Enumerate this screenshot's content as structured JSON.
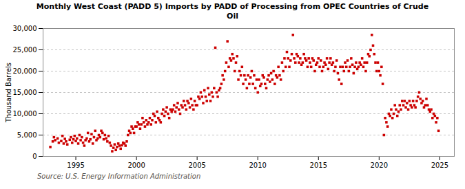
{
  "chart_data": {
    "type": "scatter",
    "title": "Monthly West Coast (PADD 5) Imports by PADD of Processing from OPEC Countries of Crude\nOil",
    "ylabel": "Thousand Barrels",
    "source": "Source: U.S. Energy Information Administration",
    "color": "#cc0000",
    "marker": "square",
    "grid": "y",
    "xlim": [
      1992.3,
      2026.2
    ],
    "xticks": [
      1995,
      2000,
      2005,
      2010,
      2015,
      2020,
      2025
    ],
    "ylim": [
      0,
      30000
    ],
    "yticks": [
      0,
      {
        "value": 5000,
        "label": "5,000"
      },
      {
        "value": 10000,
        "label": "10,000"
      },
      {
        "value": 15000,
        "label": "15,000"
      },
      {
        "value": 20000,
        "label": "20,000"
      },
      {
        "value": 25000,
        "label": "25,000"
      },
      {
        "value": 30000,
        "label": "30,000"
      }
    ],
    "x": [
      1992.9,
      1993.1,
      1993.2,
      1993.3,
      1993.5,
      1993.6,
      1993.8,
      1993.9,
      1994.0,
      1994.1,
      1994.2,
      1994.3,
      1994.5,
      1994.6,
      1994.7,
      1994.8,
      1994.9,
      1995.0,
      1995.1,
      1995.2,
      1995.3,
      1995.4,
      1995.5,
      1995.6,
      1995.7,
      1995.8,
      1995.9,
      1996.0,
      1996.1,
      1996.2,
      1996.3,
      1996.4,
      1996.5,
      1996.6,
      1996.7,
      1996.8,
      1996.9,
      1997.0,
      1997.1,
      1997.2,
      1997.3,
      1997.4,
      1997.5,
      1997.6,
      1997.7,
      1997.8,
      1997.9,
      1998.0,
      1998.1,
      1998.2,
      1998.3,
      1998.4,
      1998.5,
      1998.6,
      1998.7,
      1998.8,
      1998.9,
      1999.0,
      1999.1,
      1999.2,
      1999.3,
      1999.4,
      1999.5,
      1999.6,
      1999.7,
      1999.8,
      1999.9,
      2000.0,
      2000.1,
      2000.2,
      2000.3,
      2000.4,
      2000.5,
      2000.6,
      2000.7,
      2000.8,
      2000.9,
      2001.0,
      2001.1,
      2001.2,
      2001.3,
      2001.4,
      2001.5,
      2001.6,
      2001.7,
      2001.8,
      2001.9,
      2002.0,
      2002.1,
      2002.2,
      2002.3,
      2002.4,
      2002.5,
      2002.6,
      2002.7,
      2002.8,
      2002.9,
      2003.0,
      2003.1,
      2003.2,
      2003.3,
      2003.4,
      2003.5,
      2003.6,
      2003.7,
      2003.8,
      2003.9,
      2004.0,
      2004.1,
      2004.2,
      2004.3,
      2004.4,
      2004.5,
      2004.6,
      2004.7,
      2004.8,
      2004.9,
      2005.0,
      2005.1,
      2005.2,
      2005.3,
      2005.4,
      2005.5,
      2005.6,
      2005.7,
      2005.8,
      2005.9,
      2006.0,
      2006.1,
      2006.2,
      2006.3,
      2006.4,
      2006.5,
      2006.6,
      2006.7,
      2006.8,
      2006.9,
      2007.0,
      2007.1,
      2007.2,
      2007.3,
      2007.4,
      2007.5,
      2007.6,
      2007.7,
      2007.8,
      2007.9,
      2008.0,
      2008.1,
      2008.2,
      2008.3,
      2008.4,
      2008.5,
      2008.6,
      2008.7,
      2008.8,
      2008.9,
      2009.0,
      2009.1,
      2009.2,
      2009.3,
      2009.4,
      2009.5,
      2009.6,
      2009.7,
      2009.8,
      2009.9,
      2010.0,
      2010.1,
      2010.2,
      2010.3,
      2010.4,
      2010.5,
      2010.6,
      2010.7,
      2010.8,
      2010.9,
      2011.0,
      2011.1,
      2011.2,
      2011.3,
      2011.4,
      2011.5,
      2011.6,
      2011.7,
      2011.8,
      2011.9,
      2012.0,
      2012.1,
      2012.2,
      2012.3,
      2012.4,
      2012.5,
      2012.6,
      2012.7,
      2012.8,
      2012.9,
      2013.0,
      2013.1,
      2013.2,
      2013.3,
      2013.4,
      2013.5,
      2013.6,
      2013.7,
      2013.8,
      2013.9,
      2014.0,
      2014.1,
      2014.2,
      2014.3,
      2014.4,
      2014.5,
      2014.6,
      2014.7,
      2014.8,
      2014.9,
      2015.0,
      2015.1,
      2015.2,
      2015.3,
      2015.4,
      2015.5,
      2015.6,
      2015.7,
      2015.8,
      2015.9,
      2016.0,
      2016.1,
      2016.2,
      2016.3,
      2016.4,
      2016.5,
      2016.6,
      2016.7,
      2016.8,
      2016.9,
      2017.0,
      2017.1,
      2017.2,
      2017.3,
      2017.4,
      2017.5,
      2017.6,
      2017.7,
      2017.8,
      2017.9,
      2018.0,
      2018.1,
      2018.2,
      2018.3,
      2018.4,
      2018.5,
      2018.6,
      2018.7,
      2018.8,
      2018.9,
      2019.0,
      2019.1,
      2019.2,
      2019.3,
      2019.4,
      2019.5,
      2019.6,
      2019.7,
      2019.8,
      2019.9,
      2020.0,
      2020.1,
      2020.2,
      2020.3,
      2020.4,
      2020.5,
      2020.6,
      2020.7,
      2020.8,
      2020.9,
      2021.0,
      2021.1,
      2021.2,
      2021.3,
      2021.4,
      2021.5,
      2021.6,
      2021.7,
      2021.8,
      2021.9,
      2022.0,
      2022.1,
      2022.2,
      2022.3,
      2022.4,
      2022.5,
      2022.6,
      2022.7,
      2022.8,
      2022.9,
      2023.0,
      2023.1,
      2023.2,
      2023.3,
      2023.4,
      2023.5,
      2023.6,
      2023.7,
      2023.8,
      2023.9,
      2024.0,
      2024.1,
      2024.2,
      2024.3,
      2024.4,
      2024.5,
      2024.6,
      2024.7,
      2024.8,
      2024.9
    ],
    "values": [
      2200,
      3500,
      4500,
      3800,
      4200,
      3200,
      3600,
      4800,
      3000,
      4100,
      3500,
      2800,
      3900,
      4500,
      3200,
      4000,
      4800,
      3600,
      4200,
      3000,
      5000,
      3800,
      4500,
      3200,
      2500,
      3800,
      4200,
      5500,
      3500,
      4000,
      5200,
      3000,
      4500,
      6000,
      3800,
      4200,
      5000,
      4500,
      6000,
      5500,
      4000,
      5000,
      4200,
      3500,
      4800,
      3200,
      2500,
      1200,
      2000,
      2800,
      1500,
      2200,
      3000,
      2500,
      1800,
      2600,
      3200,
      3000,
      2500,
      3500,
      5000,
      6000,
      5500,
      7000,
      6500,
      5500,
      7000,
      7000,
      8000,
      7500,
      6500,
      7500,
      9000,
      8000,
      7000,
      8500,
      7500,
      8000,
      9000,
      7500,
      8500,
      10000,
      9500,
      8000,
      10500,
      9000,
      8500,
      8000,
      10000,
      11000,
      9500,
      10500,
      11500,
      10000,
      9000,
      11000,
      10500,
      11000,
      12000,
      10500,
      11500,
      12500,
      11000,
      10000,
      12000,
      11500,
      13000,
      12000,
      11000,
      13000,
      12500,
      11500,
      13500,
      12000,
      11000,
      13000,
      12000,
      12000,
      14000,
      13500,
      15000,
      14000,
      12500,
      15500,
      14000,
      13000,
      16000,
      14500,
      13000,
      15000,
      14000,
      16000,
      25500,
      15000,
      14000,
      15500,
      16000,
      17000,
      19000,
      18000,
      20000,
      22000,
      27000,
      21000,
      23000,
      22500,
      24000,
      23000,
      20000,
      22000,
      23500,
      18000,
      20000,
      19000,
      21000,
      17000,
      19000,
      18000,
      16000,
      19000,
      17000,
      18500,
      20000,
      17000,
      19000,
      16000,
      18000,
      15000,
      18000,
      16500,
      17000,
      19000,
      18500,
      17000,
      16000,
      18000,
      19000,
      17500,
      19500,
      18000,
      20000,
      17000,
      19000,
      18500,
      21000,
      19000,
      18000,
      22000,
      20000,
      23000,
      21000,
      24500,
      23000,
      21000,
      22500,
      24000,
      28500,
      23000,
      22000,
      24000,
      23500,
      22000,
      23000,
      21500,
      22000,
      24000,
      23000,
      22500,
      21000,
      23000,
      22000,
      21000,
      23000,
      22500,
      20000,
      21500,
      22000,
      23000,
      21000,
      22500,
      20000,
      21000,
      22000,
      21500,
      23000,
      20500,
      22000,
      23000,
      21500,
      22000,
      20000,
      21000,
      22500,
      19500,
      18000,
      21000,
      17000,
      21000,
      20000,
      22000,
      21000,
      22500,
      20000,
      21000,
      23000,
      21500,
      19500,
      21000,
      22000,
      20500,
      21000,
      22000,
      21500,
      23000,
      21000,
      22000,
      20000,
      22000,
      24000,
      23500,
      25000,
      28500,
      26000,
      24000,
      22000,
      20000,
      22000,
      20000,
      19000,
      21000,
      17000,
      5000,
      9000,
      8000,
      7000,
      10000,
      9500,
      11000,
      9000,
      10000,
      12000,
      11000,
      9500,
      10500,
      12000,
      11000,
      13000,
      12000,
      13000,
      11500,
      12500,
      11000,
      13000,
      12000,
      11500,
      13000,
      12000,
      11500,
      13000,
      14000,
      15000,
      13500,
      12500,
      13000,
      11500,
      12000,
      13500,
      12000,
      11000,
      10500,
      11000,
      9000,
      10000,
      9500,
      8000,
      9000,
      6000
    ]
  }
}
